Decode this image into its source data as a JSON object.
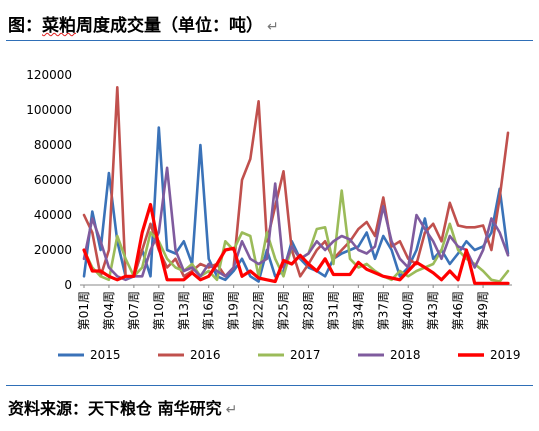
{
  "header": {
    "title_part1": "图：",
    "title_part2": "菜粕",
    "title_part3": "周度成交量（单位：吨）",
    "return_mark": "↵"
  },
  "footer": {
    "source": "资料来源：天下粮仓  南华研究"
  },
  "chart_data": {
    "type": "line",
    "title": "",
    "xlabel": "",
    "ylabel": "",
    "ylim": [
      0,
      120000
    ],
    "yticks": [
      0,
      20000,
      40000,
      60000,
      80000,
      100000,
      120000
    ],
    "x_tick_labels": [
      "第01周",
      "第04周",
      "第07周",
      "第10周",
      "第13周",
      "第16周",
      "第19周",
      "第22周",
      "第25周",
      "第28周",
      "第31周",
      "第34周",
      "第37周",
      "第40周",
      "第43周",
      "第46周",
      "第49周"
    ],
    "x_tick_weeks": [
      1,
      4,
      7,
      10,
      13,
      16,
      19,
      22,
      25,
      28,
      31,
      34,
      37,
      40,
      43,
      46,
      49
    ],
    "weeks": 52,
    "grid": false,
    "legend_position": "bottom",
    "series": [
      {
        "name": "2015",
        "color": "#3a72b8",
        "values": [
          5000,
          42000,
          20000,
          64000,
          25000,
          5000,
          5000,
          20000,
          5000,
          90000,
          20000,
          18000,
          25000,
          12000,
          80000,
          15000,
          5000,
          3000,
          8000,
          15000,
          5000,
          2000,
          20000,
          5000,
          8000,
          25000,
          15000,
          10000,
          8000,
          5000,
          15000,
          18000,
          20000,
          22000,
          30000,
          15000,
          28000,
          20000,
          5000,
          10000,
          20000,
          38000,
          15000,
          20000,
          12000,
          18000,
          25000,
          20000,
          22000,
          30000,
          55000,
          18000
        ]
      },
      {
        "name": "2016",
        "color": "#c0504d",
        "values": [
          40000,
          30000,
          5000,
          20000,
          113000,
          5000,
          5000,
          20000,
          35000,
          20000,
          10000,
          15000,
          5000,
          8000,
          12000,
          10000,
          12000,
          5000,
          10000,
          60000,
          72000,
          105000,
          25000,
          45000,
          65000,
          20000,
          5000,
          12000,
          20000,
          25000,
          15000,
          20000,
          25000,
          32000,
          36000,
          28000,
          50000,
          22000,
          25000,
          15000,
          12000,
          30000,
          35000,
          25000,
          47000,
          34000,
          33000,
          33000,
          34000,
          20000,
          50000,
          87000
        ]
      },
      {
        "name": "2017",
        "color": "#9bbb59",
        "values": [
          20000,
          10000,
          5000,
          3000,
          28000,
          15000,
          5000,
          10000,
          30000,
          25000,
          15000,
          10000,
          8000,
          12000,
          5000,
          8000,
          3000,
          25000,
          20000,
          30000,
          28000,
          5000,
          30000,
          15000,
          5000,
          22000,
          15000,
          18000,
          32000,
          33000,
          12000,
          54000,
          15000,
          10000,
          12000,
          8000,
          5000,
          3000,
          8000,
          5000,
          8000,
          10000,
          12000,
          20000,
          35000,
          20000,
          15000,
          12000,
          8000,
          3000,
          2000,
          8000
        ]
      },
      {
        "name": "2018",
        "color": "#7f5b9e",
        "values": [
          15000,
          38000,
          25000,
          10000,
          5000,
          3000,
          5000,
          5000,
          20000,
          30000,
          67000,
          20000,
          8000,
          10000,
          5000,
          12000,
          8000,
          5000,
          10000,
          25000,
          15000,
          12000,
          15000,
          58000,
          10000,
          22000,
          15000,
          18000,
          25000,
          20000,
          25000,
          28000,
          26000,
          20000,
          18000,
          22000,
          45000,
          25000,
          15000,
          10000,
          40000,
          32000,
          25000,
          15000,
          28000,
          22000,
          20000,
          10000,
          20000,
          38000,
          30000,
          17000
        ]
      },
      {
        "name": "2019",
        "color": "#ff0000",
        "values": [
          20000,
          8000,
          8000,
          5000,
          3000,
          5000,
          5000,
          30000,
          46000,
          22000,
          3000,
          3000,
          3000,
          7000,
          3000,
          5000,
          12000,
          20000,
          21000,
          5000,
          8000,
          4000,
          3000,
          2000,
          14000,
          12000,
          17000,
          12000,
          8000,
          15000,
          6000,
          6000,
          6000,
          13000,
          9000,
          7000,
          5000,
          4000,
          3000,
          8000,
          13000,
          10000,
          7000,
          3000,
          8000,
          3000,
          20000,
          1000,
          1000,
          1000,
          1000,
          1000
        ]
      }
    ]
  }
}
